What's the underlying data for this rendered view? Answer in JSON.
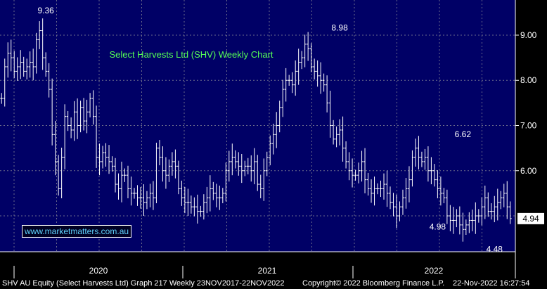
{
  "chart_data": {
    "type": "ohlc",
    "title": "Select Harvests Ltd (SHV) Weekly Chart",
    "ylim": [
      4.3,
      9.7
    ],
    "y_ticks": [
      "9.00",
      "8.00",
      "7.00",
      "6.00"
    ],
    "x_labels": [
      "2020",
      "2021",
      "2022"
    ],
    "last_price": "4.94",
    "annotations": [
      {
        "label": "9.36",
        "x": 14,
        "y": 9.36,
        "pos": "above"
      },
      {
        "label": "8.98",
        "x": 107,
        "y": 8.98,
        "pos": "above"
      },
      {
        "label": "6.62",
        "x": 146,
        "y": 6.62,
        "pos": "above"
      },
      {
        "label": "4.98",
        "x": 138,
        "y": 4.98,
        "pos": "below"
      },
      {
        "label": "4.48",
        "x": 156,
        "y": 4.48,
        "pos": "below"
      }
    ],
    "closes": [
      7.6,
      8.3,
      8.6,
      8.5,
      8.2,
      8.3,
      8.4,
      8.2,
      8.3,
      8.4,
      8.3,
      8.9,
      9.1,
      8.5,
      8.2,
      7.8,
      6.8,
      6.2,
      5.6,
      6.3,
      7.2,
      7.0,
      6.9,
      7.3,
      7.0,
      7.4,
      7.1,
      7.3,
      7.6,
      7.2,
      6.3,
      6.2,
      6.4,
      6.3,
      6.2,
      6.1,
      5.7,
      5.6,
      5.9,
      5.9,
      5.6,
      5.5,
      5.5,
      5.4,
      5.4,
      5.3,
      5.4,
      5.5,
      5.4,
      6.5,
      6.3,
      6.0,
      5.9,
      6.1,
      6.2,
      6.1,
      5.6,
      5.4,
      5.3,
      5.3,
      5.2,
      5.2,
      5.1,
      5.1,
      5.3,
      5.4,
      5.6,
      5.5,
      5.4,
      5.4,
      5.5,
      6.0,
      6.2,
      6.3,
      6.2,
      6.1,
      6.0,
      6.1,
      6.1,
      6.0,
      6.2,
      5.7,
      5.6,
      6.0,
      6.3,
      6.6,
      6.8,
      7.0,
      7.4,
      7.8,
      8.0,
      8.0,
      7.9,
      8.2,
      8.4,
      8.5,
      8.8,
      8.7,
      8.3,
      8.2,
      8.1,
      8.0,
      7.9,
      7.5,
      7.0,
      6.7,
      6.8,
      6.9,
      6.5,
      6.2,
      6.0,
      5.9,
      5.9,
      6.0,
      6.2,
      5.8,
      5.6,
      5.5,
      5.6,
      5.6,
      5.6,
      5.7,
      5.5,
      5.3,
      5.2,
      5.0,
      5.2,
      5.4,
      5.6,
      5.8,
      6.3,
      6.5,
      6.3,
      6.2,
      6.3,
      6.0,
      6.0,
      5.8,
      5.6,
      5.5,
      5.4,
      5.0,
      4.9,
      4.9,
      5.0,
      4.8,
      4.7,
      4.8,
      4.9,
      4.9,
      5.0,
      5.0,
      5.2,
      5.4,
      5.1,
      5.1,
      5.2,
      5.3,
      5.4,
      5.5,
      5.2,
      4.94
    ]
  },
  "watermark": "www.marketmatters.com.au",
  "footer": {
    "left": "SHV AU Equity (Select Harvests Ltd) Graph 217  Weekly 23NOV2017-22NOV2022",
    "copyright": "Copyright© 2022 Bloomberg Finance L.P.",
    "timestamp": "22-Nov-2022 16:27:54"
  },
  "colors": {
    "background": "#000066",
    "grid": "#6a6a8a",
    "bars": "#ffffff",
    "title": "#55ff55",
    "watermark": "#5fd4ff"
  }
}
